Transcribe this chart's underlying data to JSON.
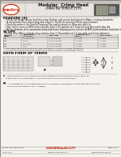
{
  "title_line1": "Modular  Crimp Head",
  "title_line2": "Specification Sheet",
  "title_line3": "Order No. 63825-1170",
  "section1_header": "FEATURE (S)",
  "section2_header": "SCOPE",
  "section3_header": "DEFN FORM OF TERMS",
  "bg_color": "#f0ede8",
  "page_bg": "#f5f2ed",
  "header_bg": "#e8e4df",
  "border_color": "#999999",
  "text_color": "#333333",
  "dark_text": "#111111",
  "red_text": "#cc2200",
  "table_line_color": "#777777",
  "table_bg": "#f0ede8",
  "table_header_bg": "#d8d4cf",
  "molex_circle_color": "#f0ede8",
  "footer_red": "#cc2200",
  "diagram_bg": "#e0ddd8",
  "diagram_dark": "#888880"
}
